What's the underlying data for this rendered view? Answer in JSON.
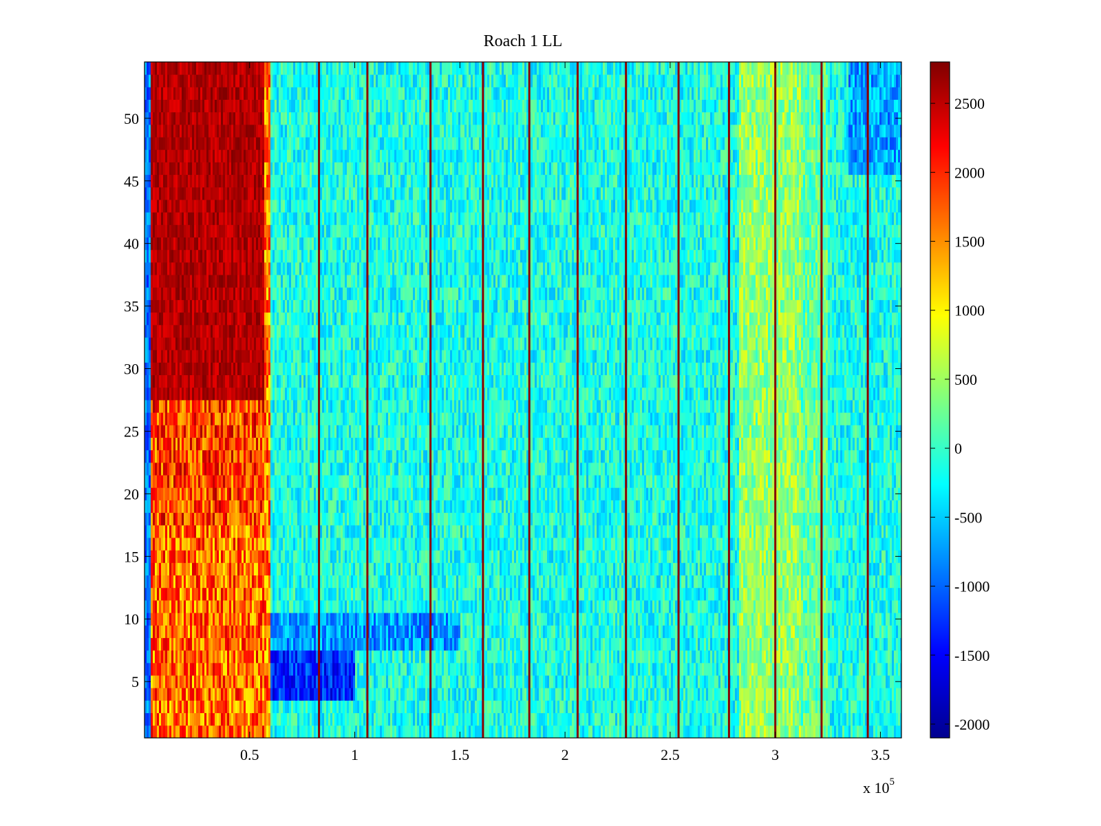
{
  "chart_data": {
    "type": "heatmap",
    "title": "Roach 1 LL",
    "xlabel": "",
    "ylabel": "",
    "x_range": [
      0,
      360000
    ],
    "y_range": [
      0.5,
      54.5
    ],
    "x_ticks": [
      50000,
      100000,
      150000,
      200000,
      250000,
      300000,
      350000
    ],
    "x_tick_labels": [
      "0.5",
      "1",
      "1.5",
      "2",
      "2.5",
      "3",
      "3.5"
    ],
    "x_exponent_label": "x 10",
    "x_exponent_power": "5",
    "y_ticks": [
      5,
      10,
      15,
      20,
      25,
      30,
      35,
      40,
      45,
      50
    ],
    "y_tick_labels": [
      "5",
      "10",
      "15",
      "20",
      "25",
      "30",
      "35",
      "40",
      "45",
      "50"
    ],
    "rows": 54,
    "colormap": "jet",
    "clim": [
      -2100,
      2800
    ],
    "colorbar_ticks": [
      2500,
      2000,
      1500,
      1000,
      500,
      0,
      -500,
      -1000,
      -1500,
      -2000
    ],
    "colorbar_tick_labels": [
      "2500",
      "2000",
      "1500",
      "1000",
      "500",
      "0",
      "-500",
      "-1000",
      "-1500",
      "-2000"
    ],
    "vertical_stripe_positions": [
      83000,
      106000,
      136000,
      161000,
      183000,
      206000,
      229000,
      254000,
      278000,
      300000,
      322000,
      344000
    ],
    "regions": [
      {
        "x_range": [
          3000,
          57000
        ],
        "y_range": [
          27.5,
          54.5
        ],
        "approx_value": 2800
      },
      {
        "x_range": [
          3000,
          57000
        ],
        "y_range": [
          17.5,
          27.5
        ],
        "approx_value": 1900
      },
      {
        "x_range": [
          3000,
          57000
        ],
        "y_range": [
          0.5,
          17.5
        ],
        "approx_value": 1700
      },
      {
        "x_range": [
          57000,
          100000
        ],
        "y_range": [
          3.5,
          7.5
        ],
        "approx_value": -1400
      },
      {
        "x_range": [
          57000,
          360000
        ],
        "y_range": [
          0.5,
          54.5
        ],
        "approx_value": -100
      },
      {
        "x_range": [
          283000,
          310000
        ],
        "y_range": [
          0.5,
          54.5
        ],
        "approx_value": 500
      }
    ]
  }
}
